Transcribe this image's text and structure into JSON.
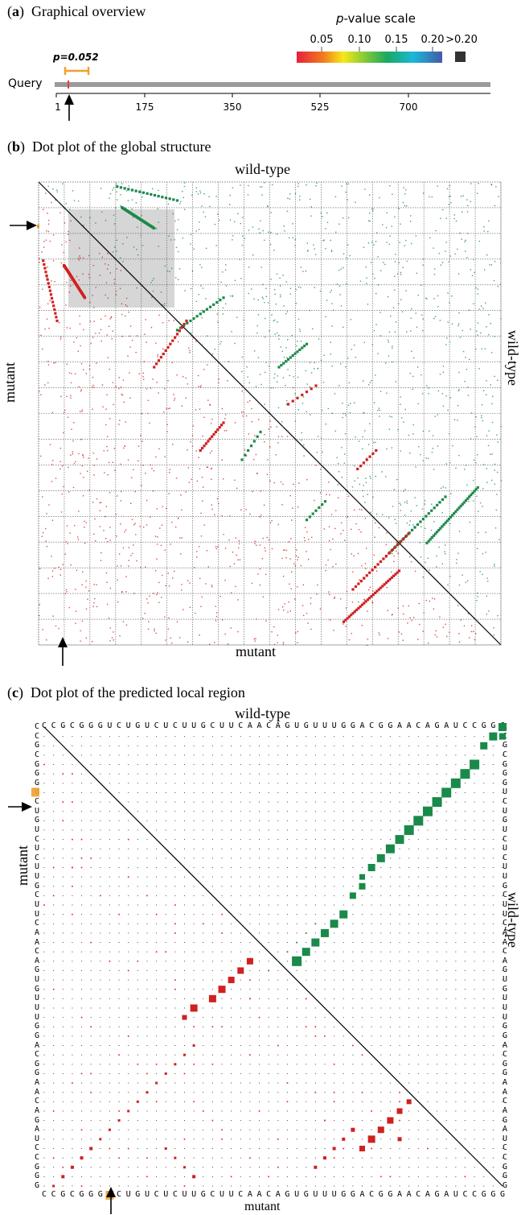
{
  "panel_a": {
    "letter": "a",
    "title": "Graphical overview",
    "scale_title_italic": "p",
    "scale_title_rest": "-value scale",
    "scale_ticks": [
      "0.05",
      "0.10",
      "0.15",
      "0.20",
      ">0.20"
    ],
    "pvalue_label": "p=0.052",
    "query_label": "Query",
    "axis_ticks": [
      "1",
      "175",
      "350",
      "525",
      "700"
    ],
    "colors": {
      "highlight": "#f0a030",
      "query_bar": "#9a9a9a",
      "gt_box": "#333333"
    }
  },
  "panel_b": {
    "letter": "b",
    "title": "Dot plot of the global structure",
    "top_label": "wild-type",
    "right_label": "wild-type",
    "left_label": "mutant",
    "bottom_label": "mutant",
    "colors": {
      "upper": "#1a8a4a",
      "lower": "#d02020",
      "highlight_box": "#c8c8c8"
    }
  },
  "panel_c": {
    "letter": "c",
    "title": "Dot plot of the predicted local region",
    "top_label": "wild-type",
    "right_label": "wild-type",
    "left_label": "mutant",
    "bottom_label": "mutant",
    "top_sequence": "CCGCGGGUCUGUCUCUUGCUUCAACAGUGUUUGGACGGAACAGAUCCGGG",
    "bottom_sequence": "CCGCGGGUCUGUCUCUUGCUUCAACAGUGUUUGGACGGAACAGAUCCGGG",
    "left_sequence": "CCGCGGGUCUGUCUCUUGCUUCAACAGUGUUUGGACGGAACAGAUCCGGG",
    "right_sequence": "CCGCGGGUCUGUCUCUUGCUUCAACAGUGUUUGGACGGAACAGAUCCGGG",
    "colors": {
      "upper": "#1a8a4a",
      "lower": "#d02020",
      "mutation": "#f0a030"
    }
  }
}
